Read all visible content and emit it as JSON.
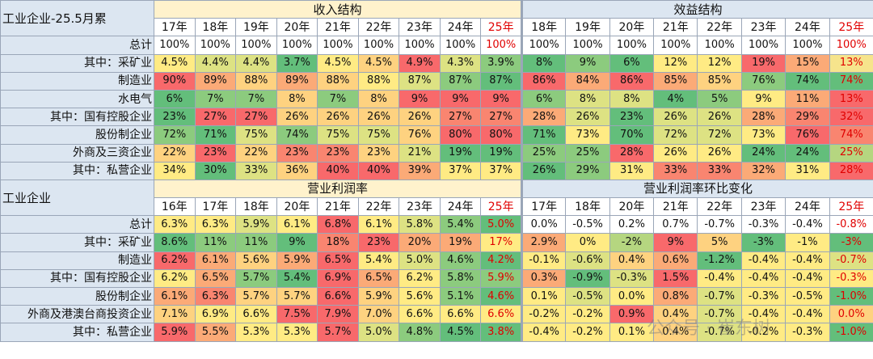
{
  "sections": [
    {
      "title": "工业企业-25.5月累",
      "groups": [
        {
          "title": "收入结构",
          "years": [
            "17年",
            "18年",
            "19年",
            "20年",
            "21年",
            "22年",
            "23年",
            "24年",
            "25年"
          ]
        },
        {
          "title": "效益结构",
          "years": [
            "18年",
            "19年",
            "20年",
            "21年",
            "22年",
            "23年",
            "24年",
            "25年"
          ]
        }
      ],
      "rows": [
        {
          "label": "总计",
          "cells": [
            "100%",
            "100%",
            "100%",
            "100%",
            "100%",
            "100%",
            "100%",
            "100%",
            "100%",
            "100%",
            "100%",
            "100%",
            "100%",
            "100%",
            "100%",
            "100%",
            "100%"
          ],
          "colors": [
            "#ffffff",
            "#ffffff",
            "#ffffff",
            "#ffffff",
            "#ffffff",
            "#ffffff",
            "#ffffff",
            "#ffffff",
            "#ffffff",
            "#ffffff",
            "#ffffff",
            "#ffffff",
            "#ffffff",
            "#ffffff",
            "#ffffff",
            "#ffffff",
            "#ffffff"
          ]
        },
        {
          "label": "其中：采矿业",
          "cells": [
            "4.5%",
            "4.4%",
            "4.4%",
            "3.7%",
            "4.5%",
            "4.5%",
            "4.9%",
            "4.3%",
            "3.9%",
            "8%",
            "9%",
            "6%",
            "12%",
            "12%",
            "19%",
            "15%",
            "13%"
          ],
          "colors": [
            "#ffeb84",
            "#dde283",
            "#dde283",
            "#63be7b",
            "#ffeb84",
            "#fed280",
            "#f8696b",
            "#dde283",
            "#8ccb7e",
            "#63be7b",
            "#8ccb7e",
            "#63be7b",
            "#ffeb84",
            "#ffeb84",
            "#f8696b",
            "#fbaa77",
            "#f6e48c"
          ]
        },
        {
          "label": "制造业",
          "cells": [
            "90%",
            "89%",
            "88%",
            "89%",
            "88%",
            "88%",
            "87%",
            "87%",
            "87%",
            "86%",
            "84%",
            "86%",
            "85%",
            "85%",
            "76%",
            "74%",
            "74%"
          ],
          "colors": [
            "#f8696b",
            "#fbaa77",
            "#fed280",
            "#fbaa77",
            "#fed280",
            "#ffeb84",
            "#dde283",
            "#8ccb7e",
            "#63be7b",
            "#f8696b",
            "#fbaa77",
            "#f8696b",
            "#fbaa77",
            "#fed280",
            "#8ccb7e",
            "#63be7b",
            "#63be7b"
          ]
        },
        {
          "label": "水电气",
          "cells": [
            "6%",
            "7%",
            "7%",
            "8%",
            "7%",
            "8%",
            "9%",
            "9%",
            "9%",
            "6%",
            "8%",
            "8%",
            "4%",
            "5%",
            "9%",
            "11%",
            "13%"
          ],
          "colors": [
            "#63be7b",
            "#8ccb7e",
            "#8ccb7e",
            "#fed280",
            "#8ccb7e",
            "#fed280",
            "#f8696b",
            "#f8696b",
            "#f8696b",
            "#8ccb7e",
            "#dde283",
            "#dde283",
            "#63be7b",
            "#8ccb7e",
            "#ffeb84",
            "#fbaa77",
            "#f8696b"
          ]
        },
        {
          "label": "其中：国有控股企业",
          "cells": [
            "23%",
            "27%",
            "27%",
            "26%",
            "26%",
            "26%",
            "26%",
            "27%",
            "27%",
            "28%",
            "26%",
            "23%",
            "26%",
            "26%",
            "28%",
            "29%",
            "32%"
          ],
          "colors": [
            "#63be7b",
            "#f8696b",
            "#f8696b",
            "#fed280",
            "#fed280",
            "#fed280",
            "#fed280",
            "#f98570",
            "#f98570",
            "#fbaa77",
            "#dde283",
            "#63be7b",
            "#dde283",
            "#dde283",
            "#fbaa77",
            "#f98570",
            "#f8696b"
          ]
        },
        {
          "label": "股份制企业",
          "cells": [
            "72%",
            "71%",
            "75%",
            "74%",
            "75%",
            "75%",
            "76%",
            "80%",
            "80%",
            "71%",
            "73%",
            "70%",
            "72%",
            "72%",
            "73%",
            "76%",
            "74%"
          ],
          "colors": [
            "#8ccb7e",
            "#63be7b",
            "#dde283",
            "#8ccb7e",
            "#dde283",
            "#dde283",
            "#fed280",
            "#f8696b",
            "#f8696b",
            "#63be7b",
            "#ffeb84",
            "#63be7b",
            "#dde283",
            "#dde283",
            "#ffeb84",
            "#f8696b",
            "#f98570"
          ]
        },
        {
          "label": "外商及三资企业",
          "cells": [
            "22%",
            "23%",
            "22%",
            "23%",
            "23%",
            "23%",
            "21%",
            "19%",
            "19%",
            "25%",
            "25%",
            "28%",
            "26%",
            "26%",
            "24%",
            "24%",
            "25%"
          ],
          "colors": [
            "#fed280",
            "#f8696b",
            "#fed280",
            "#f98570",
            "#f98570",
            "#fed280",
            "#dde283",
            "#63be7b",
            "#63be7b",
            "#8ccb7e",
            "#8ccb7e",
            "#f8696b",
            "#ffeb84",
            "#ffeb84",
            "#63be7b",
            "#63be7b",
            "#b5d680"
          ]
        },
        {
          "label": "其中：私营企业",
          "cells": [
            "34%",
            "30%",
            "33%",
            "36%",
            "40%",
            "40%",
            "39%",
            "37%",
            "37%",
            "26%",
            "29%",
            "31%",
            "33%",
            "33%",
            "32%",
            "31%",
            "28%"
          ],
          "colors": [
            "#ffeb84",
            "#63be7b",
            "#dde283",
            "#fed280",
            "#f8696b",
            "#f8696b",
            "#fbaa77",
            "#ffeb84",
            "#ffeb84",
            "#63be7b",
            "#8ccb7e",
            "#ffeb84",
            "#f98570",
            "#f98570",
            "#fbaa77",
            "#ffeb84",
            "#f8696b"
          ]
        }
      ]
    },
    {
      "title": "工业企业",
      "groups": [
        {
          "title": "营业利润率",
          "years": [
            "16年",
            "17年",
            "18年",
            "20年",
            "21年",
            "22年",
            "23年",
            "24年",
            "25年"
          ]
        },
        {
          "title": "营业利润率环比变化",
          "years": [
            "17年",
            "18年",
            "20年",
            "21年",
            "22年",
            "23年",
            "24年",
            "25年"
          ]
        }
      ],
      "rows": [
        {
          "label": "总计",
          "cells": [
            "6.3%",
            "6.3%",
            "5.9%",
            "6.1%",
            "6.8%",
            "6.1%",
            "5.8%",
            "5.4%",
            "5.0%",
            "0.0%",
            "-0.5%",
            "0.2%",
            "0.7%",
            "-0.7%",
            "-0.3%",
            "-0.4%",
            "-0.8%"
          ],
          "colors": [
            "#ffeb84",
            "#ffeb84",
            "#dde283",
            "#ffeb84",
            "#f8696b",
            "#ffeb84",
            "#dde283",
            "#8ccb7e",
            "#63be7b",
            "#ffffff",
            "#ffffff",
            "#ffffff",
            "#ffffff",
            "#ffffff",
            "#ffffff",
            "#ffffff",
            "#ffffff"
          ]
        },
        {
          "label": "其中：采矿业",
          "cells": [
            "8.6%",
            "11%",
            "11%",
            "9%",
            "18%",
            "23%",
            "20%",
            "19%",
            "17%",
            "2.9%",
            "0%",
            "-2%",
            "9%",
            "5%",
            "-3%",
            "-1%",
            "-3%"
          ],
          "colors": [
            "#63be7b",
            "#8ccb7e",
            "#8ccb7e",
            "#63be7b",
            "#f98570",
            "#f8696b",
            "#fbaa77",
            "#fbaa77",
            "#ffeb84",
            "#fbaa77",
            "#ffeb84",
            "#b5d680",
            "#f8696b",
            "#fed280",
            "#63be7b",
            "#ffeb84",
            "#63be7b"
          ]
        },
        {
          "label": "制造业",
          "cells": [
            "6.2%",
            "6.1%",
            "5.6%",
            "5.9%",
            "6.5%",
            "5.4%",
            "5.0%",
            "4.6%",
            "4.2%",
            "-0.1%",
            "-0.6%",
            "0.4%",
            "0.6%",
            "-1.2%",
            "-0.4%",
            "-0.4%",
            "-0.7%"
          ],
          "colors": [
            "#f8696b",
            "#fbaa77",
            "#fed280",
            "#fbaa77",
            "#f8696b",
            "#ffeb84",
            "#dde283",
            "#8ccb7e",
            "#63be7b",
            "#ffeb84",
            "#dde283",
            "#fed280",
            "#fbaa77",
            "#63be7b",
            "#ffeb84",
            "#ffeb84",
            "#dde283"
          ]
        },
        {
          "label": "其中：国有控股企业",
          "cells": [
            "6.2%",
            "6.5%",
            "5.7%",
            "5.4%",
            "6.9%",
            "6.5%",
            "6.2%",
            "5.8%",
            "5.9%",
            "0.3%",
            "-0.9%",
            "-0.3%",
            "1.5%",
            "-0.4%",
            "-0.4%",
            "-0.4%",
            "-0.3%"
          ],
          "colors": [
            "#ffeb84",
            "#fbaa77",
            "#8ccb7e",
            "#63be7b",
            "#f8696b",
            "#fbaa77",
            "#ffeb84",
            "#8ccb7e",
            "#8ccb7e",
            "#fbaa77",
            "#63be7b",
            "#dde283",
            "#f8696b",
            "#ffeb84",
            "#ffeb84",
            "#ffeb84",
            "#ffeb84"
          ]
        },
        {
          "label": "股份制企业",
          "cells": [
            "6.1%",
            "6.3%",
            "5.7%",
            "5.7%",
            "6.6%",
            "5.9%",
            "5.6%",
            "5.1%",
            "4.6%",
            "0.1%",
            "-0.5%",
            "0.0%",
            "0.8%",
            "-0.7%",
            "-0.3%",
            "-0.5%",
            "-1.0%"
          ],
          "colors": [
            "#fbaa77",
            "#f98570",
            "#fed280",
            "#fed280",
            "#f8696b",
            "#fed280",
            "#ffeb84",
            "#8ccb7e",
            "#63be7b",
            "#ffeb84",
            "#dde283",
            "#ffeb84",
            "#fbaa77",
            "#dde283",
            "#ffeb84",
            "#ffeb84",
            "#63be7b"
          ]
        },
        {
          "label": "外商及港澳台商投资企业",
          "cells": [
            "7.1%",
            "6.9%",
            "6.6%",
            "7.5%",
            "7.9%",
            "7.0%",
            "6.6%",
            "6.6%",
            "6.6%",
            "-0.2%",
            "-0.2%",
            "0.9%",
            "0.4%",
            "-0.7%",
            "-0.4%",
            "-0.4%",
            "0.0%"
          ],
          "colors": [
            "#fed280",
            "#ffeb84",
            "#ffeb84",
            "#f8696b",
            "#f8696b",
            "#fed280",
            "#ffeb84",
            "#ffeb84",
            "#ffeb84",
            "#ffeb84",
            "#ffeb84",
            "#f8696b",
            "#fed280",
            "#dde283",
            "#ffeb84",
            "#ffeb84",
            "#fed280"
          ]
        },
        {
          "label": "其中：私营企业",
          "cells": [
            "5.9%",
            "5.5%",
            "5.3%",
            "5.3%",
            "5.7%",
            "5.0%",
            "4.8%",
            "4.5%",
            "3.8%",
            "-0.4%",
            "-0.2%",
            "0.1%",
            "0.4%",
            "-0.7%",
            "-0.2%",
            "-0.3%",
            "-1.0%"
          ],
          "colors": [
            "#f8696b",
            "#fbaa77",
            "#ffeb84",
            "#ffeb84",
            "#f8696b",
            "#dde283",
            "#8ccb7e",
            "#63be7b",
            "#63be7b",
            "#ffeb84",
            "#ffeb84",
            "#ffeb84",
            "#fed280",
            "#dde283",
            "#ffeb84",
            "#ffeb84",
            "#63be7b"
          ]
        }
      ]
    }
  ],
  "watermark": "公众号 · 崔东树"
}
